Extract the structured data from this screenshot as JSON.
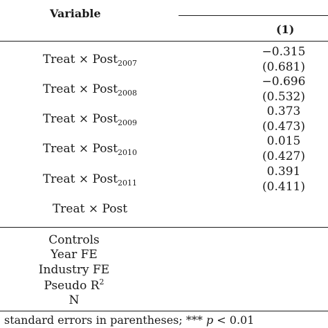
{
  "header": {
    "variable_label": "Variable",
    "column_label": "(1)"
  },
  "rows": [
    {
      "name": "Treat × Post",
      "sub": "2007",
      "coef": "−0.315",
      "se": "(0.681)"
    },
    {
      "name": "Treat × Post",
      "sub": "2008",
      "coef": "−0.696",
      "se": "(0.532)"
    },
    {
      "name": "Treat × Post",
      "sub": "2009",
      "coef": "0.373",
      "se": "(0.473)"
    },
    {
      "name": "Treat × Post",
      "sub": "2010",
      "coef": "0.015",
      "se": "(0.427)"
    },
    {
      "name": "Treat × Post",
      "sub": "2011",
      "coef": "0.391",
      "se": "(0.411)"
    },
    {
      "name": "Treat × Post",
      "sub": "",
      "coef": "",
      "se": ""
    }
  ],
  "controls": {
    "controls": "Controls",
    "year_fe": "Year FE",
    "industry_fe": "Industry FE",
    "pseudo_r": "Pseudo R",
    "pseudo_r_sup": "2",
    "n": "N"
  },
  "note": {
    "prefix": "standard errors in parentheses; *** ",
    "p": "p",
    "suffix": " < 0.01"
  }
}
